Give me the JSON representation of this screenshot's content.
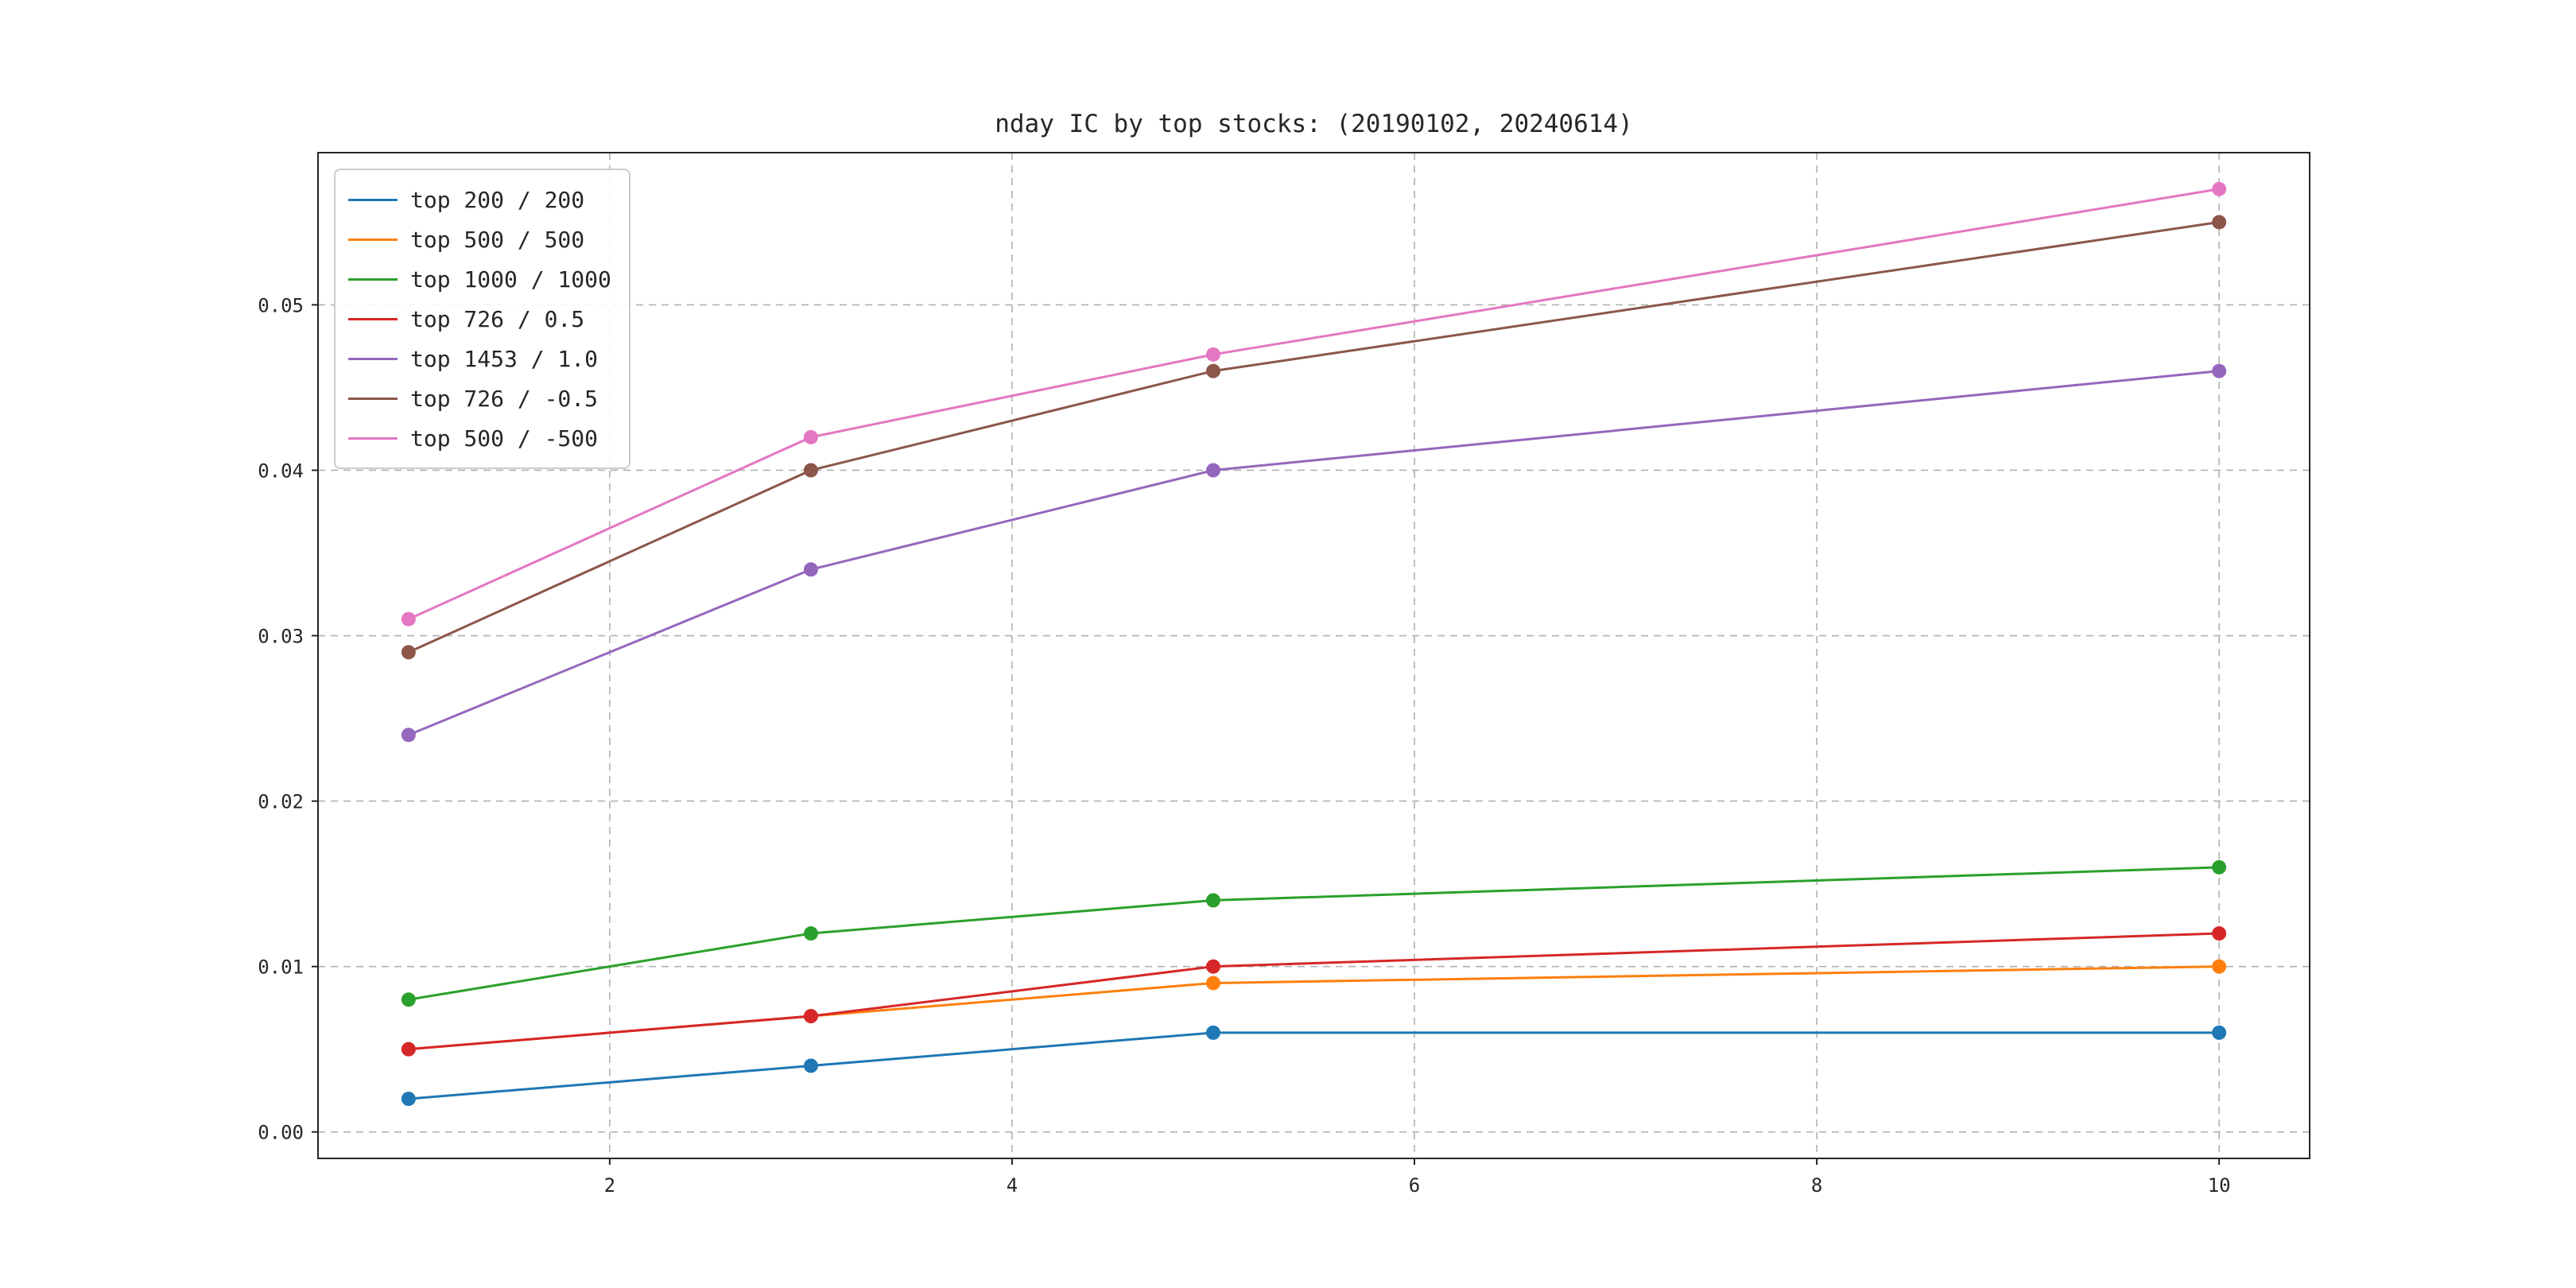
{
  "chart_data": {
    "type": "line",
    "title": "nday IC by top stocks: (20190102, 20240614)",
    "x": [
      1,
      3,
      5,
      10
    ],
    "series": [
      {
        "name": "top 200 / 200",
        "color": "#1f77b4",
        "values": [
          0.002,
          0.004,
          0.006,
          0.006
        ]
      },
      {
        "name": "top 500 / 500",
        "color": "#ff7f0e",
        "values": [
          0.005,
          0.007,
          0.009,
          0.01
        ]
      },
      {
        "name": "top 1000 / 1000",
        "color": "#2ca02c",
        "values": [
          0.008,
          0.012,
          0.014,
          0.016
        ]
      },
      {
        "name": "top 726 / 0.5",
        "color": "#d62728",
        "values": [
          0.005,
          0.007,
          0.01,
          0.012
        ]
      },
      {
        "name": "top 1453 / 1.0",
        "color": "#9467bd",
        "values": [
          0.024,
          0.034,
          0.04,
          0.046
        ]
      },
      {
        "name": "top 726 / -0.5",
        "color": "#8c564b",
        "values": [
          0.029,
          0.04,
          0.046,
          0.055
        ]
      },
      {
        "name": "top 500 / -500",
        "color": "#e377c2",
        "values": [
          0.031,
          0.042,
          0.047,
          0.057
        ]
      }
    ],
    "xticks": [
      2,
      4,
      6,
      8,
      10
    ],
    "xtick_labels": [
      "2",
      "4",
      "6",
      "8",
      "10"
    ],
    "yticks": [
      0.0,
      0.01,
      0.02,
      0.03,
      0.04,
      0.05
    ],
    "ytick_labels": [
      "0.00",
      "0.01",
      "0.02",
      "0.03",
      "0.04",
      "0.05"
    ],
    "xlim": [
      0.55,
      10.45
    ],
    "ylim": [
      -0.0016,
      0.0592
    ],
    "xlabel": "",
    "ylabel": "",
    "grid": true,
    "grid_style": "dashed",
    "grid_color": "#b0b0b0",
    "axis_color": "#262626",
    "legend_position": "upper-left",
    "marker": "circle"
  }
}
